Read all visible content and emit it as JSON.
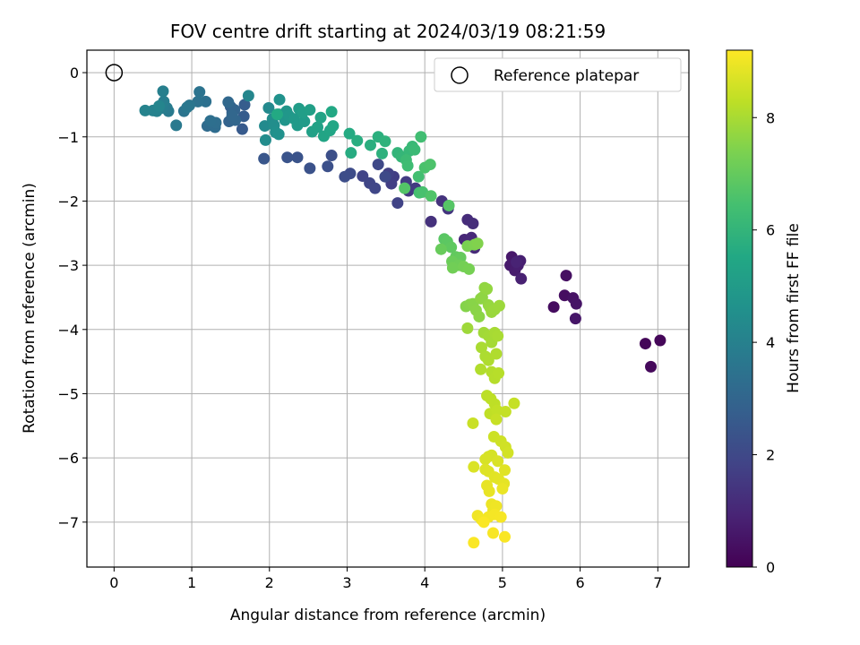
{
  "chart_data": {
    "type": "scatter",
    "title": "FOV centre drift starting at 2024/03/19 08:21:59",
    "xlabel": "Angular distance from reference (arcmin)",
    "ylabel": "Rotation from reference (arcmin)",
    "xlim": [
      -0.35,
      7.4
    ],
    "ylim": [
      -7.7,
      0.35
    ],
    "xticks": [
      0,
      1,
      2,
      3,
      4,
      5,
      6,
      7
    ],
    "yticks": [
      0,
      -1,
      -2,
      -3,
      -4,
      -5,
      -6,
      -7
    ],
    "grid": true,
    "legend": {
      "placement": "top-right",
      "entries": [
        "Reference platepar"
      ]
    },
    "reference_point": {
      "x": 0,
      "y": 0,
      "label": "Reference platepar"
    },
    "colormap": "viridis",
    "colorbar": {
      "label": "Hours from first FF file",
      "min": 0,
      "max": 9.2,
      "ticks": [
        0,
        2,
        4,
        6,
        8
      ]
    },
    "points": [
      [
        6.84,
        -4.22,
        0.1
      ],
      [
        7.03,
        -4.17,
        0.15
      ],
      [
        6.91,
        -4.58,
        0.2
      ],
      [
        5.66,
        -3.65,
        0.3
      ],
      [
        5.8,
        -3.47,
        0.35
      ],
      [
        5.82,
        -3.16,
        0.4
      ],
      [
        5.91,
        -3.51,
        0.45
      ],
      [
        5.95,
        -3.6,
        0.5
      ],
      [
        5.94,
        -3.83,
        0.55
      ],
      [
        5.12,
        -2.87,
        0.6
      ],
      [
        5.1,
        -3.0,
        0.65
      ],
      [
        5.16,
        -3.08,
        0.7
      ],
      [
        5.2,
        -3.0,
        0.75
      ],
      [
        5.23,
        -2.93,
        0.8
      ],
      [
        5.24,
        -3.21,
        0.85
      ],
      [
        5.18,
        -2.95,
        0.9
      ],
      [
        4.51,
        -2.6,
        1.0
      ],
      [
        4.6,
        -2.57,
        1.05
      ],
      [
        4.64,
        -2.73,
        1.1
      ],
      [
        4.55,
        -2.29,
        1.15
      ],
      [
        4.62,
        -2.35,
        1.2
      ],
      [
        4.08,
        -2.32,
        1.3
      ],
      [
        4.22,
        -2.0,
        1.35
      ],
      [
        4.3,
        -2.12,
        1.4
      ],
      [
        3.79,
        -1.84,
        1.5
      ],
      [
        3.88,
        -1.8,
        1.55
      ],
      [
        3.76,
        -1.7,
        1.6
      ],
      [
        3.6,
        -1.62,
        1.65
      ],
      [
        3.57,
        -1.73,
        1.7
      ],
      [
        3.53,
        -1.57,
        1.75
      ],
      [
        3.65,
        -2.03,
        1.8
      ],
      [
        3.2,
        -1.61,
        1.85
      ],
      [
        3.29,
        -1.72,
        1.9
      ],
      [
        3.36,
        -1.8,
        1.95
      ],
      [
        3.4,
        -1.43,
        2.0
      ],
      [
        3.49,
        -1.62,
        2.05
      ],
      [
        3.04,
        -1.57,
        2.1
      ],
      [
        2.97,
        -1.62,
        2.15
      ],
      [
        2.8,
        -1.29,
        2.2
      ],
      [
        2.75,
        -1.46,
        2.25
      ],
      [
        2.52,
        -1.49,
        2.3
      ],
      [
        2.36,
        -1.32,
        2.35
      ],
      [
        2.23,
        -1.32,
        2.4
      ],
      [
        1.93,
        -1.34,
        2.45
      ],
      [
        1.65,
        -0.88,
        2.6
      ],
      [
        1.67,
        -0.68,
        2.65
      ],
      [
        1.68,
        -0.5,
        2.7
      ],
      [
        1.5,
        -0.53,
        2.8
      ],
      [
        1.52,
        -0.62,
        2.85
      ],
      [
        1.48,
        -0.76,
        2.9
      ],
      [
        1.55,
        -0.58,
        2.95
      ],
      [
        1.56,
        -0.74,
        3.0
      ],
      [
        1.52,
        -0.67,
        3.05
      ],
      [
        1.47,
        -0.46,
        3.1
      ],
      [
        1.2,
        -0.83,
        3.2
      ],
      [
        1.3,
        -0.85,
        3.25
      ],
      [
        1.31,
        -0.78,
        3.3
      ],
      [
        1.24,
        -0.75,
        3.35
      ],
      [
        1.18,
        -0.45,
        3.4
      ],
      [
        1.08,
        -0.45,
        3.45
      ],
      [
        1.1,
        -0.3,
        3.5
      ],
      [
        0.9,
        -0.6,
        3.55
      ],
      [
        0.97,
        -0.51,
        3.6
      ],
      [
        0.94,
        -0.54,
        3.65
      ],
      [
        0.8,
        -0.82,
        3.7
      ],
      [
        0.7,
        -0.6,
        3.75
      ],
      [
        0.68,
        -0.55,
        3.8
      ],
      [
        0.62,
        -0.55,
        3.85
      ],
      [
        0.64,
        -0.45,
        3.9
      ],
      [
        0.63,
        -0.29,
        3.95
      ],
      [
        0.55,
        -0.6,
        4.0
      ],
      [
        0.5,
        -0.59,
        4.05
      ],
      [
        0.4,
        -0.59,
        4.1
      ],
      [
        0.58,
        -0.52,
        4.15
      ],
      [
        1.73,
        -0.36,
        4.2
      ],
      [
        1.99,
        -0.55,
        4.3
      ],
      [
        1.94,
        -0.83,
        4.35
      ],
      [
        1.95,
        -1.05,
        4.4
      ],
      [
        2.04,
        -0.72,
        4.45
      ],
      [
        2.06,
        -0.82,
        4.5
      ],
      [
        2.08,
        -0.93,
        4.55
      ],
      [
        2.12,
        -0.96,
        4.6
      ],
      [
        2.13,
        -0.42,
        4.65
      ],
      [
        2.12,
        -0.65,
        4.7
      ],
      [
        2.2,
        -0.74,
        4.75
      ],
      [
        2.22,
        -0.6,
        4.8
      ],
      [
        2.25,
        -0.67,
        4.85
      ],
      [
        2.32,
        -0.72,
        4.9
      ],
      [
        2.36,
        -0.82,
        4.95
      ],
      [
        2.45,
        -0.76,
        5.0
      ],
      [
        2.38,
        -0.56,
        5.05
      ],
      [
        2.43,
        -0.62,
        5.1
      ],
      [
        2.52,
        -0.58,
        5.15
      ],
      [
        2.55,
        -0.92,
        5.2
      ],
      [
        2.62,
        -0.85,
        5.25
      ],
      [
        2.66,
        -0.7,
        5.3
      ],
      [
        2.7,
        -0.99,
        5.35
      ],
      [
        2.78,
        -0.9,
        5.4
      ],
      [
        2.82,
        -0.83,
        5.45
      ],
      [
        2.8,
        -0.61,
        5.5
      ],
      [
        2.1,
        -0.65,
        5.55
      ],
      [
        3.03,
        -0.95,
        5.6
      ],
      [
        3.05,
        -1.25,
        5.65
      ],
      [
        3.13,
        -1.06,
        5.7
      ],
      [
        3.3,
        -1.13,
        5.75
      ],
      [
        3.4,
        -1.0,
        5.8
      ],
      [
        3.45,
        -1.26,
        5.85
      ],
      [
        3.49,
        -1.07,
        5.9
      ],
      [
        3.65,
        -1.25,
        6.0
      ],
      [
        3.7,
        -1.31,
        6.05
      ],
      [
        3.8,
        -1.22,
        6.1
      ],
      [
        3.84,
        -1.15,
        6.15
      ],
      [
        3.87,
        -1.2,
        6.2
      ],
      [
        3.76,
        -1.36,
        6.25
      ],
      [
        3.78,
        -1.45,
        6.3
      ],
      [
        3.95,
        -1.0,
        6.35
      ],
      [
        3.92,
        -1.62,
        6.4
      ],
      [
        3.93,
        -1.87,
        6.45
      ],
      [
        3.97,
        -1.86,
        6.5
      ],
      [
        4.0,
        -1.48,
        6.55
      ],
      [
        4.07,
        -1.43,
        6.6
      ],
      [
        4.08,
        -1.92,
        6.65
      ],
      [
        3.74,
        -1.8,
        6.7
      ],
      [
        4.31,
        -2.07,
        6.75
      ],
      [
        4.25,
        -2.59,
        6.8
      ],
      [
        4.29,
        -2.63,
        6.85
      ],
      [
        4.34,
        -2.72,
        6.9
      ],
      [
        4.4,
        -2.87,
        6.95
      ],
      [
        4.46,
        -2.88,
        7.0
      ],
      [
        4.21,
        -2.75,
        7.05
      ],
      [
        4.35,
        -2.94,
        7.1
      ],
      [
        4.44,
        -3.0,
        7.15
      ],
      [
        4.36,
        -3.04,
        7.2
      ],
      [
        4.5,
        -3.02,
        7.25
      ],
      [
        4.57,
        -3.06,
        7.3
      ],
      [
        4.55,
        -2.7,
        7.35
      ],
      [
        4.64,
        -2.68,
        7.4
      ],
      [
        4.68,
        -2.66,
        7.45
      ],
      [
        4.53,
        -3.64,
        7.5
      ],
      [
        4.58,
        -3.61,
        7.52
      ],
      [
        4.62,
        -3.6,
        7.55
      ],
      [
        4.66,
        -3.7,
        7.58
      ],
      [
        4.7,
        -3.8,
        7.6
      ],
      [
        4.72,
        -3.52,
        7.62
      ],
      [
        4.74,
        -3.5,
        7.65
      ],
      [
        4.77,
        -3.35,
        7.68
      ],
      [
        4.8,
        -3.37,
        7.7
      ],
      [
        4.82,
        -3.62,
        7.72
      ],
      [
        4.84,
        -3.66,
        7.75
      ],
      [
        4.86,
        -3.73,
        7.78
      ],
      [
        4.9,
        -3.69,
        7.8
      ],
      [
        4.96,
        -3.63,
        7.82
      ],
      [
        4.55,
        -3.98,
        7.85
      ],
      [
        4.76,
        -4.05,
        7.9
      ],
      [
        4.82,
        -4.1,
        7.92
      ],
      [
        4.86,
        -4.2,
        7.95
      ],
      [
        4.9,
        -4.05,
        7.98
      ],
      [
        4.94,
        -4.1,
        8.0
      ],
      [
        4.73,
        -4.28,
        8.02
      ],
      [
        4.78,
        -4.42,
        8.05
      ],
      [
        4.82,
        -4.48,
        8.08
      ],
      [
        4.92,
        -4.38,
        8.1
      ],
      [
        4.72,
        -4.62,
        8.12
      ],
      [
        4.86,
        -4.66,
        8.15
      ],
      [
        4.9,
        -4.76,
        8.18
      ],
      [
        4.95,
        -4.68,
        8.2
      ],
      [
        4.8,
        -5.03,
        8.25
      ],
      [
        4.85,
        -5.08,
        8.28
      ],
      [
        4.9,
        -5.16,
        8.3
      ],
      [
        4.84,
        -5.31,
        8.32
      ],
      [
        4.93,
        -5.26,
        8.35
      ],
      [
        5.04,
        -5.28,
        8.38
      ],
      [
        5.15,
        -5.15,
        8.4
      ],
      [
        4.92,
        -5.4,
        8.42
      ],
      [
        4.62,
        -5.46,
        8.45
      ],
      [
        4.89,
        -5.67,
        8.5
      ],
      [
        4.98,
        -5.74,
        8.52
      ],
      [
        5.04,
        -5.83,
        8.55
      ],
      [
        5.07,
        -5.92,
        8.58
      ],
      [
        4.82,
        -5.98,
        8.6
      ],
      [
        4.86,
        -5.96,
        8.62
      ],
      [
        4.78,
        -6.02,
        8.65
      ],
      [
        4.94,
        -6.05,
        8.68
      ],
      [
        4.63,
        -6.14,
        8.7
      ],
      [
        4.78,
        -6.18,
        8.72
      ],
      [
        4.82,
        -6.21,
        8.75
      ],
      [
        5.03,
        -6.19,
        8.78
      ],
      [
        4.9,
        -6.3,
        8.8
      ],
      [
        4.95,
        -6.33,
        8.82
      ],
      [
        5.02,
        -6.4,
        8.85
      ],
      [
        4.8,
        -6.43,
        8.88
      ],
      [
        4.83,
        -6.52,
        8.9
      ],
      [
        5.0,
        -6.48,
        8.92
      ],
      [
        4.86,
        -6.72,
        8.95
      ],
      [
        4.88,
        -6.82,
        8.97
      ],
      [
        4.92,
        -6.75,
        9.0
      ],
      [
        4.68,
        -6.9,
        9.02
      ],
      [
        4.73,
        -6.96,
        9.04
      ],
      [
        4.82,
        -6.92,
        9.06
      ],
      [
        4.9,
        -6.88,
        9.08
      ],
      [
        4.98,
        -6.92,
        9.1
      ],
      [
        4.88,
        -7.17,
        9.12
      ],
      [
        5.03,
        -7.23,
        9.14
      ],
      [
        4.63,
        -7.32,
        9.15
      ],
      [
        4.76,
        -7.0,
        9.16
      ]
    ]
  }
}
